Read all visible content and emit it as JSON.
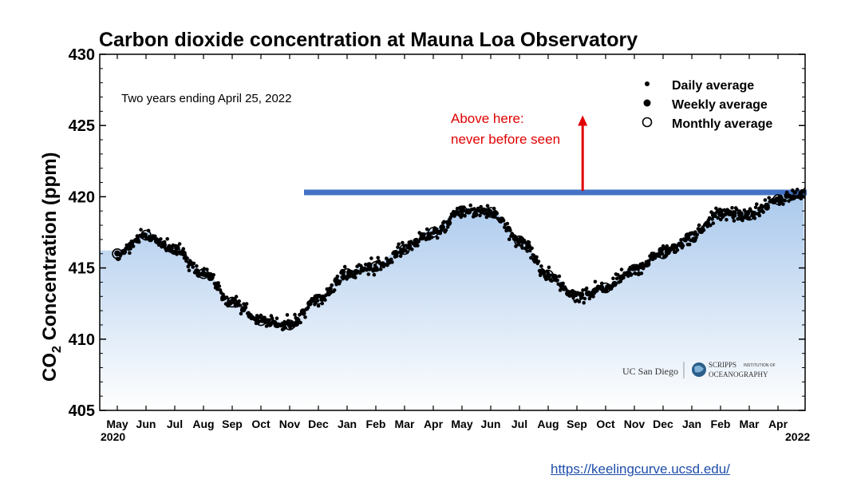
{
  "chart_data": {
    "type": "scatter",
    "title": "Carbon dioxide concentration at Mauna Loa Observatory",
    "subtitle": "Two years ending April 25, 2022",
    "ylabel_main": "CO",
    "ylabel_sub": "2",
    "ylabel_rest": " Concentration (ppm)",
    "ylim": [
      405,
      430
    ],
    "yticks": [
      "430",
      "425",
      "420",
      "415",
      "410",
      "405"
    ],
    "xticks": [
      "May",
      "Jun",
      "Jul",
      "Aug",
      "Sep",
      "Oct",
      "Nov",
      "Dec",
      "Jan",
      "Feb",
      "Mar",
      "Apr",
      "May",
      "Jun",
      "Jul",
      "Aug",
      "Sep",
      "Oct",
      "Nov",
      "Dec",
      "Jan",
      "Feb",
      "Mar",
      "Apr"
    ],
    "xtick_years": {
      "start": "2020",
      "end": "2022"
    },
    "legend": {
      "placement": "top-right",
      "items": [
        {
          "label": "Daily average",
          "marker": "small-dot"
        },
        {
          "label": "Weekly average",
          "marker": "large-dot"
        },
        {
          "label": "Monthly average",
          "marker": "open-circle"
        }
      ]
    },
    "threshold": {
      "value": 420.3,
      "color": "#4472c4",
      "start_month": 6.5,
      "end_month": 24
    },
    "annotation": {
      "line1": "Above here:",
      "line2": "never before seen",
      "color": "#e00000",
      "arrow_month": 16.2,
      "arrow_from": 420.3,
      "arrow_to": 425.6
    },
    "series": [
      {
        "name": "Monthly average",
        "x": [
          0,
          1,
          2,
          3,
          4,
          5,
          6,
          7,
          8,
          9,
          10,
          11,
          12,
          13,
          14,
          15,
          16,
          17,
          18,
          19,
          20,
          21,
          22,
          23,
          24
        ],
        "values": [
          416.0,
          417.3,
          416.3,
          414.6,
          412.6,
          411.3,
          411.0,
          412.8,
          414.6,
          415.1,
          416.3,
          417.5,
          419.0,
          418.9,
          416.9,
          414.5,
          413.0,
          413.6,
          414.9,
          416.0,
          417.2,
          418.8,
          418.7,
          419.8,
          420.2
        ]
      },
      {
        "name": "Daily average",
        "x": [],
        "values": []
      },
      {
        "name": "Weekly average",
        "x": [],
        "values": []
      }
    ],
    "background_fill": {
      "top_color": "#a9c8ec",
      "bottom_color": "#ffffff"
    }
  },
  "logos": {
    "ucsd": "UC San Diego",
    "scripps_line1": "SCRIPPS",
    "scripps_small": "INSTITUTION OF",
    "scripps_line2": "OCEANOGRAPHY"
  },
  "source": {
    "url": "https://keelingcurve.ucsd.edu/"
  }
}
